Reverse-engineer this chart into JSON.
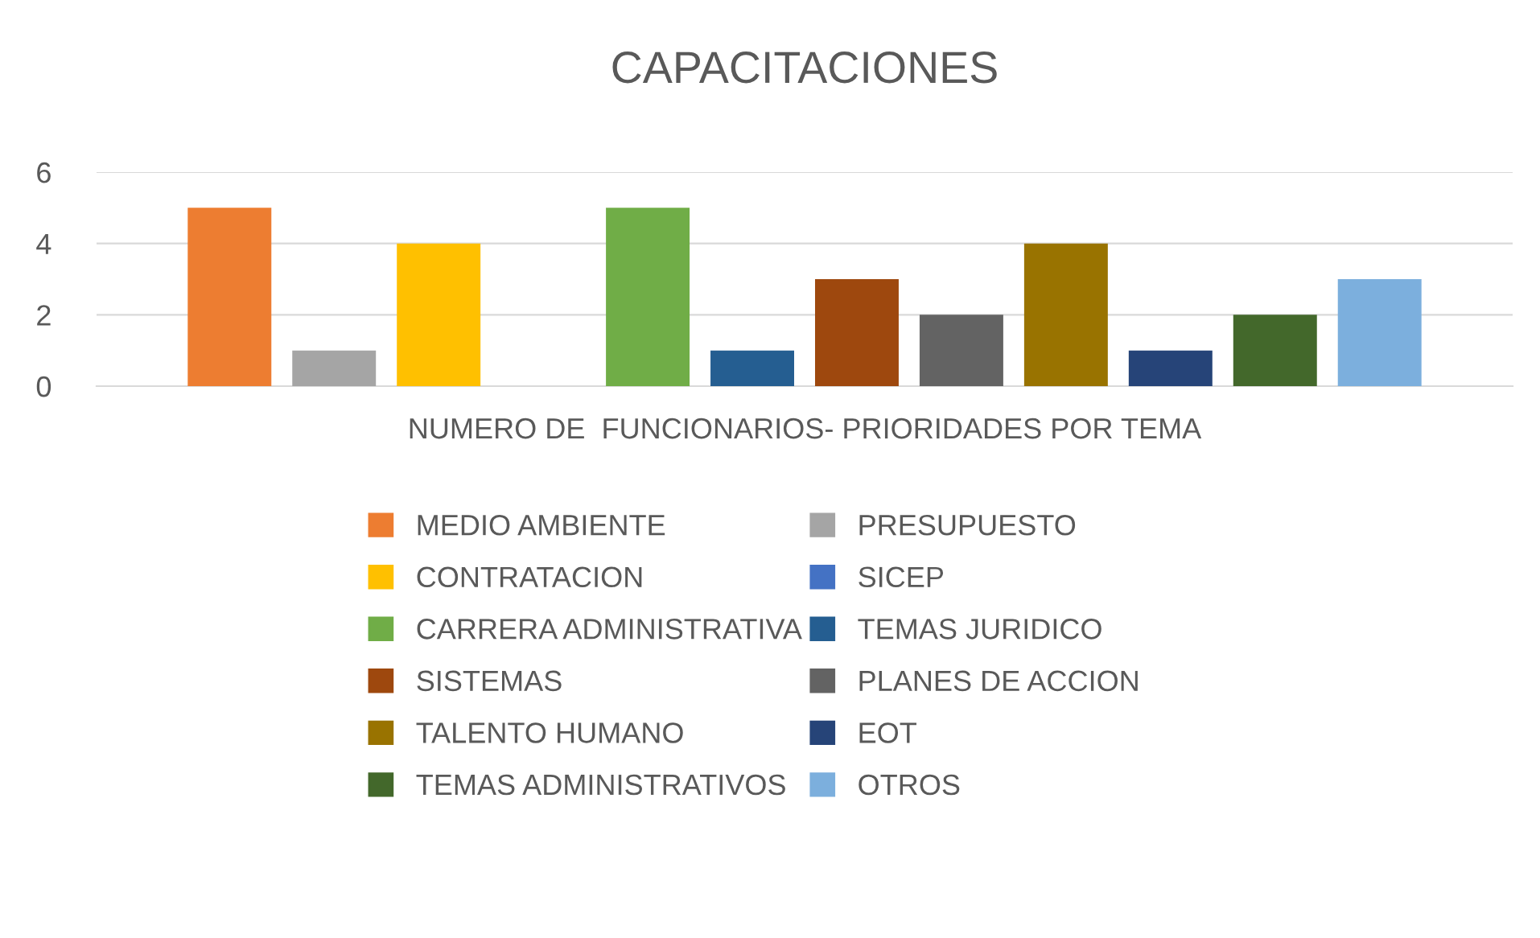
{
  "chart_data": {
    "type": "bar",
    "title": "CAPACITACIONES",
    "categories": [
      "NUMERO DE  FUNCIONARIOS- PRIORIDADES POR TEMA"
    ],
    "series": [
      {
        "name": "MEDIO AMBIENTE",
        "color": "#ed7d31",
        "values": [
          5
        ]
      },
      {
        "name": "PRESUPUESTO",
        "color": "#a5a5a5",
        "values": [
          1
        ]
      },
      {
        "name": "CONTRATACION",
        "color": "#ffc000",
        "values": [
          4
        ]
      },
      {
        "name": "SICEP",
        "color": "#4472c4",
        "values": [
          0
        ]
      },
      {
        "name": "CARRERA ADMINISTRATIVA",
        "color": "#70ad47",
        "values": [
          5
        ]
      },
      {
        "name": "TEMAS JURIDICO",
        "color": "#255e91",
        "values": [
          1
        ]
      },
      {
        "name": "SISTEMAS",
        "color": "#9e480e",
        "values": [
          3
        ]
      },
      {
        "name": "PLANES DE ACCION",
        "color": "#636363",
        "values": [
          2
        ]
      },
      {
        "name": "TALENTO HUMANO",
        "color": "#997300",
        "values": [
          4
        ]
      },
      {
        "name": "EOT",
        "color": "#264478",
        "values": [
          1
        ]
      },
      {
        "name": "TEMAS ADMINISTRATIVOS",
        "color": "#43682b",
        "values": [
          2
        ]
      },
      {
        "name": "OTROS",
        "color": "#7cafdd",
        "values": [
          3
        ]
      }
    ],
    "ylim": [
      0,
      6
    ],
    "yticks": [
      0,
      2,
      4,
      6
    ],
    "grid": "y",
    "legend": "bottom"
  }
}
